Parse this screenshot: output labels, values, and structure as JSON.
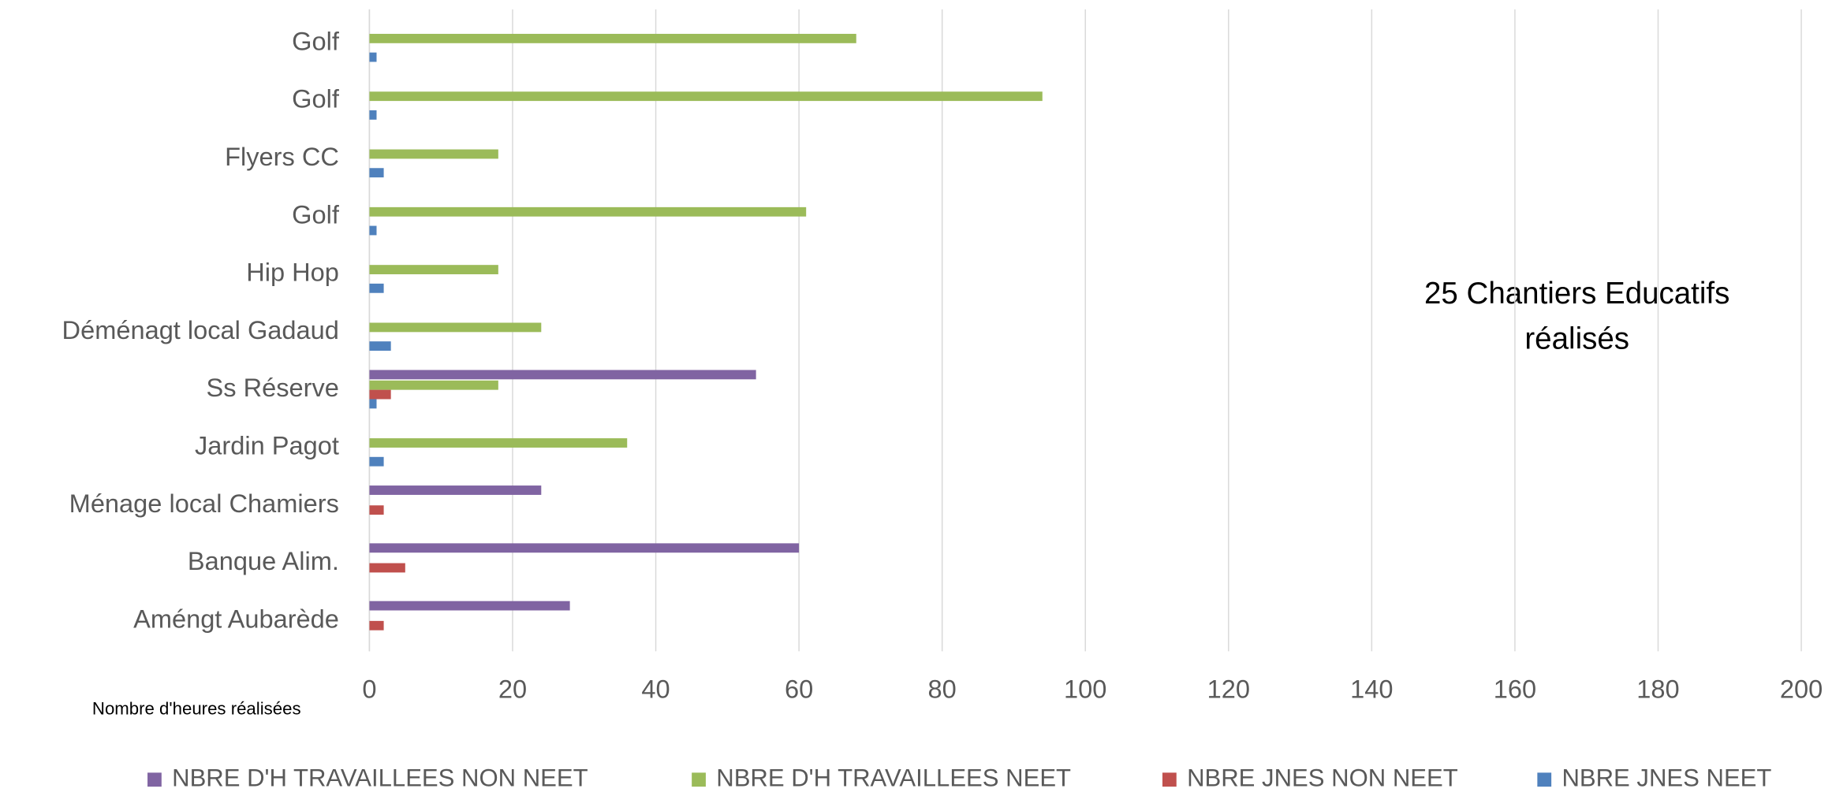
{
  "chart_data": {
    "type": "bar",
    "orientation": "horizontal",
    "x_label": "Nombre d'heures réalisées",
    "annotation": [
      "25 Chantiers Educatifs",
      "réalisés"
    ],
    "categories": [
      "Golf",
      "Golf",
      "Flyers CC",
      "Golf",
      "Hip Hop",
      "Déménagt local Gadaud",
      "Ss Réserve",
      "Jardin Pagot",
      "Ménage local Chamiers",
      "Banque Alim.",
      "Améngt Aubarède"
    ],
    "series": [
      {
        "name": "NBRE D'H TRAVAILLEES NON NEET",
        "color": "#8064a2",
        "values": [
          null,
          null,
          null,
          null,
          null,
          null,
          54,
          null,
          24,
          60,
          28
        ]
      },
      {
        "name": "NBRE D'H TRAVAILLEES NEET",
        "color": "#9bbb59",
        "values": [
          68,
          94,
          18,
          61,
          18,
          24,
          18,
          36,
          null,
          null,
          null
        ]
      },
      {
        "name": "NBRE JNES NON NEET",
        "color": "#c0504d",
        "values": [
          null,
          null,
          null,
          null,
          null,
          null,
          3,
          null,
          2,
          5,
          2
        ]
      },
      {
        "name": "NBRE JNES NEET",
        "color": "#4f81bd",
        "values": [
          1,
          1,
          2,
          1,
          2,
          3,
          1,
          2,
          null,
          null,
          null
        ]
      }
    ],
    "xlim": [
      0,
      200
    ],
    "xticks": [
      0,
      20,
      40,
      60,
      80,
      100,
      120,
      140,
      160,
      180,
      200
    ],
    "grid": true,
    "legend": "bottom"
  }
}
